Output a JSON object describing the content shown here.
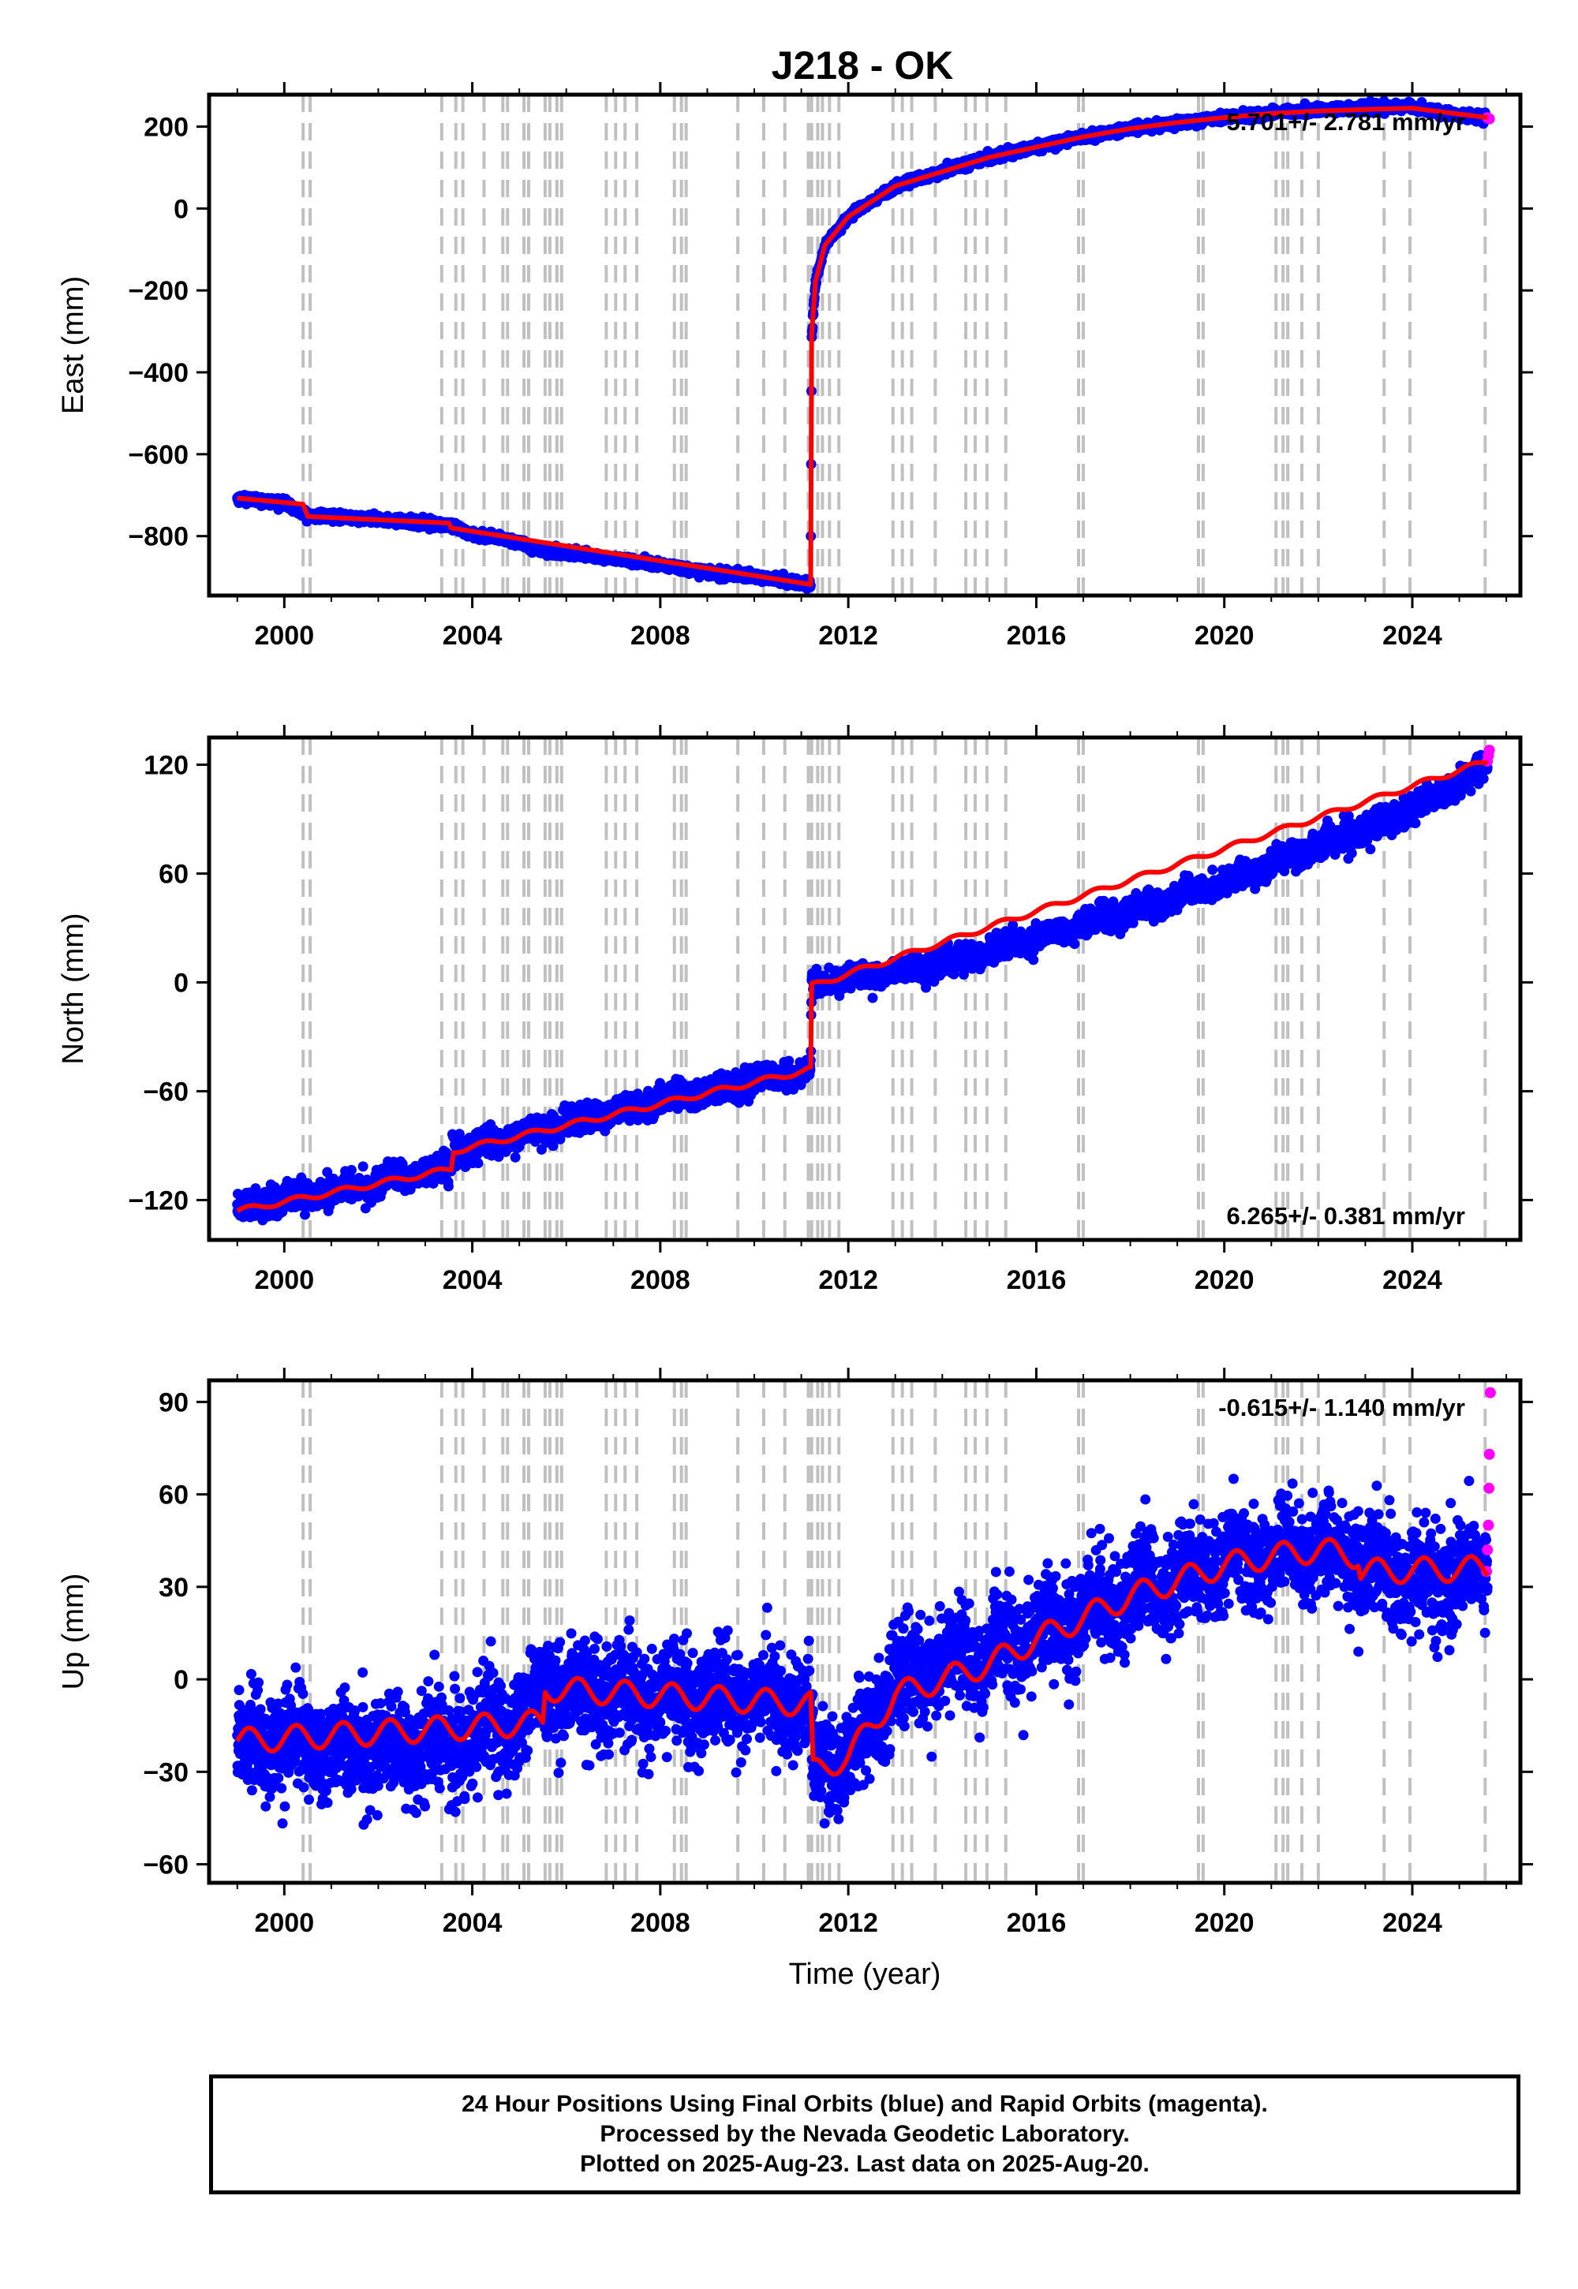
{
  "title": "J218 - OK",
  "colors": {
    "final_orbits": "#0000ff",
    "rapid_orbits": "#ff00ff",
    "model": "#ff0000",
    "event_lines": "#c0c0c0"
  },
  "footer": {
    "line1": "24 Hour Positions Using Final Orbits (blue) and Rapid Orbits (magenta).",
    "line2": "Processed by the Nevada Geodetic Laboratory.",
    "line3": "Plotted on 2025-Aug-23. Last data on 2025-Aug-20."
  },
  "chart_data": [
    {
      "type": "scatter",
      "title": "J218 - OK",
      "ylabel": "East (mm)",
      "xlabel": "",
      "xlim": [
        1998.4,
        2026.3
      ],
      "ylim": [
        -945,
        278
      ],
      "xticks": [
        2000,
        2004,
        2008,
        2012,
        2016,
        2020,
        2024
      ],
      "yticks": [
        200,
        0,
        -200,
        -400,
        -600,
        -800
      ],
      "ytick_labels": [
        "200",
        "0",
        "−200",
        "−400",
        "−600",
        "−800"
      ],
      "rate_label": "5.701+/- 2.781 mm/yr",
      "rate_position": "top-right",
      "grid": false,
      "series": [
        {
          "name": "Final Orbits",
          "color": "#0000ff",
          "points": [
            [
              1999.0,
              -708
            ],
            [
              1999.5,
              -712
            ],
            [
              2000.0,
              -720
            ],
            [
              2000.5,
              -750
            ],
            [
              2001.0,
              -752
            ],
            [
              2002.0,
              -760
            ],
            [
              2003.0,
              -768
            ],
            [
              2003.5,
              -775
            ],
            [
              2004.0,
              -795
            ],
            [
              2005.0,
              -815
            ],
            [
              2005.5,
              -835
            ],
            [
              2006.0,
              -840
            ],
            [
              2007.0,
              -855
            ],
            [
              2008.0,
              -870
            ],
            [
              2008.5,
              -880
            ],
            [
              2009.0,
              -888
            ],
            [
              2010.0,
              -898
            ],
            [
              2011.0,
              -915
            ],
            [
              2011.2,
              -918
            ],
            [
              2011.22,
              -320
            ],
            [
              2011.3,
              -180
            ],
            [
              2011.5,
              -90
            ],
            [
              2012.0,
              -20
            ],
            [
              2013.0,
              55
            ],
            [
              2014.0,
              90
            ],
            [
              2015.0,
              125
            ],
            [
              2016.0,
              150
            ],
            [
              2017.0,
              175
            ],
            [
              2018.0,
              195
            ],
            [
              2019.0,
              210
            ],
            [
              2020.0,
              222
            ],
            [
              2021.0,
              232
            ],
            [
              2022.0,
              240
            ],
            [
              2023.0,
              245
            ],
            [
              2024.0,
              248
            ],
            [
              2025.0,
              228
            ],
            [
              2025.6,
              222
            ]
          ]
        },
        {
          "name": "Rapid Orbits",
          "color": "#ff00ff",
          "points": [
            [
              2025.6,
              222
            ],
            [
              2025.62,
              220
            ],
            [
              2025.64,
              219
            ]
          ]
        },
        {
          "name": "Model",
          "color": "#ff0000",
          "points": [
            [
              1999.0,
              -707
            ],
            [
              2000.4,
              -722
            ],
            [
              2000.5,
              -752
            ],
            [
              2003.5,
              -768
            ],
            [
              2003.55,
              -780
            ],
            [
              2011.2,
              -918
            ],
            [
              2011.22,
              -310
            ],
            [
              2011.3,
              -180
            ],
            [
              2011.5,
              -90
            ],
            [
              2012.0,
              -20
            ],
            [
              2013.0,
              55
            ],
            [
              2014.0,
              90
            ],
            [
              2015.0,
              125
            ],
            [
              2016.0,
              150
            ],
            [
              2017.0,
              175
            ],
            [
              2018.0,
              195
            ],
            [
              2019.0,
              210
            ],
            [
              2020.0,
              222
            ],
            [
              2021.0,
              232
            ],
            [
              2022.0,
              238
            ],
            [
              2023.0,
              242
            ],
            [
              2024.0,
              245
            ],
            [
              2025.6,
              222
            ]
          ]
        }
      ]
    },
    {
      "type": "scatter",
      "ylabel": "North (mm)",
      "xlabel": "",
      "xlim": [
        1998.4,
        2026.3
      ],
      "ylim": [
        -142,
        135
      ],
      "xticks": [
        2000,
        2004,
        2008,
        2012,
        2016,
        2020,
        2024
      ],
      "yticks": [
        120,
        60,
        0,
        -60,
        -120
      ],
      "ytick_labels": [
        "120",
        "60",
        "0",
        "−60",
        "−120"
      ],
      "rate_label": "6.265+/- 0.381 mm/yr",
      "rate_position": "bottom-right",
      "grid": false,
      "series": [
        {
          "name": "Final Orbits",
          "color": "#0000ff",
          "points": [
            [
              1999.0,
              -125
            ],
            [
              2000.0,
              -120
            ],
            [
              2001.0,
              -115
            ],
            [
              2002.0,
              -110
            ],
            [
              2003.0,
              -105
            ],
            [
              2003.5,
              -103
            ],
            [
              2003.6,
              -92
            ],
            [
              2005.0,
              -85
            ],
            [
              2006.0,
              -78
            ],
            [
              2007.0,
              -72
            ],
            [
              2008.0,
              -66
            ],
            [
              2009.0,
              -60
            ],
            [
              2010.0,
              -54
            ],
            [
              2011.0,
              -50
            ],
            [
              2011.2,
              -48
            ],
            [
              2011.22,
              -2
            ],
            [
              2012.0,
              2
            ],
            [
              2013.0,
              6
            ],
            [
              2014.0,
              10
            ],
            [
              2015.0,
              17
            ],
            [
              2016.0,
              25
            ],
            [
              2017.0,
              32
            ],
            [
              2018.0,
              40
            ],
            [
              2019.0,
              46
            ],
            [
              2020.0,
              55
            ],
            [
              2021.0,
              65
            ],
            [
              2022.0,
              75
            ],
            [
              2023.0,
              85
            ],
            [
              2024.0,
              95
            ],
            [
              2025.0,
              110
            ],
            [
              2025.6,
              120
            ]
          ]
        },
        {
          "name": "Rapid Orbits",
          "color": "#ff00ff",
          "points": [
            [
              2025.6,
              122
            ],
            [
              2025.62,
              125
            ],
            [
              2025.64,
              128
            ]
          ]
        },
        {
          "name": "Model",
          "color": "#ff0000",
          "points": [
            [
              1999.0,
              -126
            ],
            [
              2003.55,
              -103
            ],
            [
              2003.6,
              -93
            ],
            [
              2011.2,
              -48
            ],
            [
              2011.22,
              -2
            ],
            [
              2025.6,
              122
            ]
          ]
        }
      ]
    },
    {
      "type": "scatter",
      "ylabel": "Up (mm)",
      "xlabel": "Time (year)",
      "xlim": [
        1998.4,
        2026.3
      ],
      "ylim": [
        -66,
        97
      ],
      "xticks": [
        2000,
        2004,
        2008,
        2012,
        2016,
        2020,
        2024
      ],
      "yticks": [
        90,
        60,
        30,
        0,
        -30,
        -60
      ],
      "ytick_labels": [
        "90",
        "60",
        "30",
        "0",
        "−30",
        "−60"
      ],
      "rate_label": "-0.615+/- 1.140 mm/yr",
      "rate_position": "top-right",
      "grid": false,
      "series": [
        {
          "name": "Final Orbits",
          "color": "#0000ff",
          "points": [
            [
              1999.0,
              -20
            ],
            [
              2000.0,
              -20
            ],
            [
              2001.0,
              -22
            ],
            [
              2002.0,
              -22
            ],
            [
              2003.0,
              -22
            ],
            [
              2004.0,
              -18
            ],
            [
              2005.0,
              -14
            ],
            [
              2005.5,
              -3
            ],
            [
              2006.0,
              -5
            ],
            [
              2007.0,
              -6
            ],
            [
              2008.0,
              -6
            ],
            [
              2009.0,
              -6
            ],
            [
              2010.0,
              -7
            ],
            [
              2011.0,
              -8
            ],
            [
              2011.2,
              -8
            ],
            [
              2011.25,
              -30
            ],
            [
              2012.0,
              -25
            ],
            [
              2012.5,
              -15
            ],
            [
              2013.0,
              0
            ],
            [
              2014.0,
              5
            ],
            [
              2015.0,
              8
            ],
            [
              2016.0,
              15
            ],
            [
              2017.0,
              20
            ],
            [
              2018.0,
              28
            ],
            [
              2019.0,
              33
            ],
            [
              2020.0,
              37
            ],
            [
              2021.0,
              40
            ],
            [
              2022.0,
              42
            ],
            [
              2022.8,
              40
            ],
            [
              2022.9,
              35
            ],
            [
              2024.0,
              33
            ],
            [
              2025.0,
              33
            ],
            [
              2025.6,
              35
            ]
          ]
        },
        {
          "name": "Rapid Orbits",
          "color": "#ff00ff",
          "points": [
            [
              2025.58,
              35
            ],
            [
              2025.6,
              42
            ],
            [
              2025.62,
              50
            ],
            [
              2025.63,
              62
            ],
            [
              2025.64,
              73
            ],
            [
              2025.66,
              93
            ]
          ]
        },
        {
          "name": "Model",
          "color": "#ff0000",
          "points": [
            [
              1999.0,
              -20
            ],
            [
              2005.5,
              -14
            ],
            [
              2005.55,
              -3
            ],
            [
              2011.2,
              -8
            ],
            [
              2011.25,
              -30
            ],
            [
              2012.0,
              -25
            ],
            [
              2013.0,
              -5
            ],
            [
              2014.0,
              0
            ],
            [
              2015.0,
              5
            ],
            [
              2016.0,
              13
            ],
            [
              2017.0,
              20
            ],
            [
              2018.0,
              27
            ],
            [
              2019.0,
              32
            ],
            [
              2020.0,
              37
            ],
            [
              2021.0,
              40
            ],
            [
              2022.0,
              42
            ],
            [
              2022.85,
              40
            ],
            [
              2022.9,
              35
            ],
            [
              2025.6,
              36
            ]
          ]
        }
      ]
    }
  ],
  "event_lines_years": [
    2000.4,
    2000.55,
    2003.35,
    2003.65,
    2003.8,
    2004.25,
    2004.65,
    2004.75,
    2005.1,
    2005.2,
    2005.55,
    2005.65,
    2005.8,
    2005.9,
    2006.85,
    2007.05,
    2007.25,
    2007.5,
    2008.3,
    2008.45,
    2008.55,
    2009.65,
    2010.2,
    2010.65,
    2011.15,
    2011.22,
    2011.35,
    2011.45,
    2011.6,
    2011.8,
    2012.95,
    2013.15,
    2013.35,
    2013.85,
    2014.5,
    2014.7,
    2014.95,
    2015.35,
    2016.9,
    2017.0,
    2019.45,
    2019.55,
    2021.1,
    2021.25,
    2021.35,
    2021.65,
    2022.0,
    2023.4,
    2023.95,
    2025.55
  ]
}
